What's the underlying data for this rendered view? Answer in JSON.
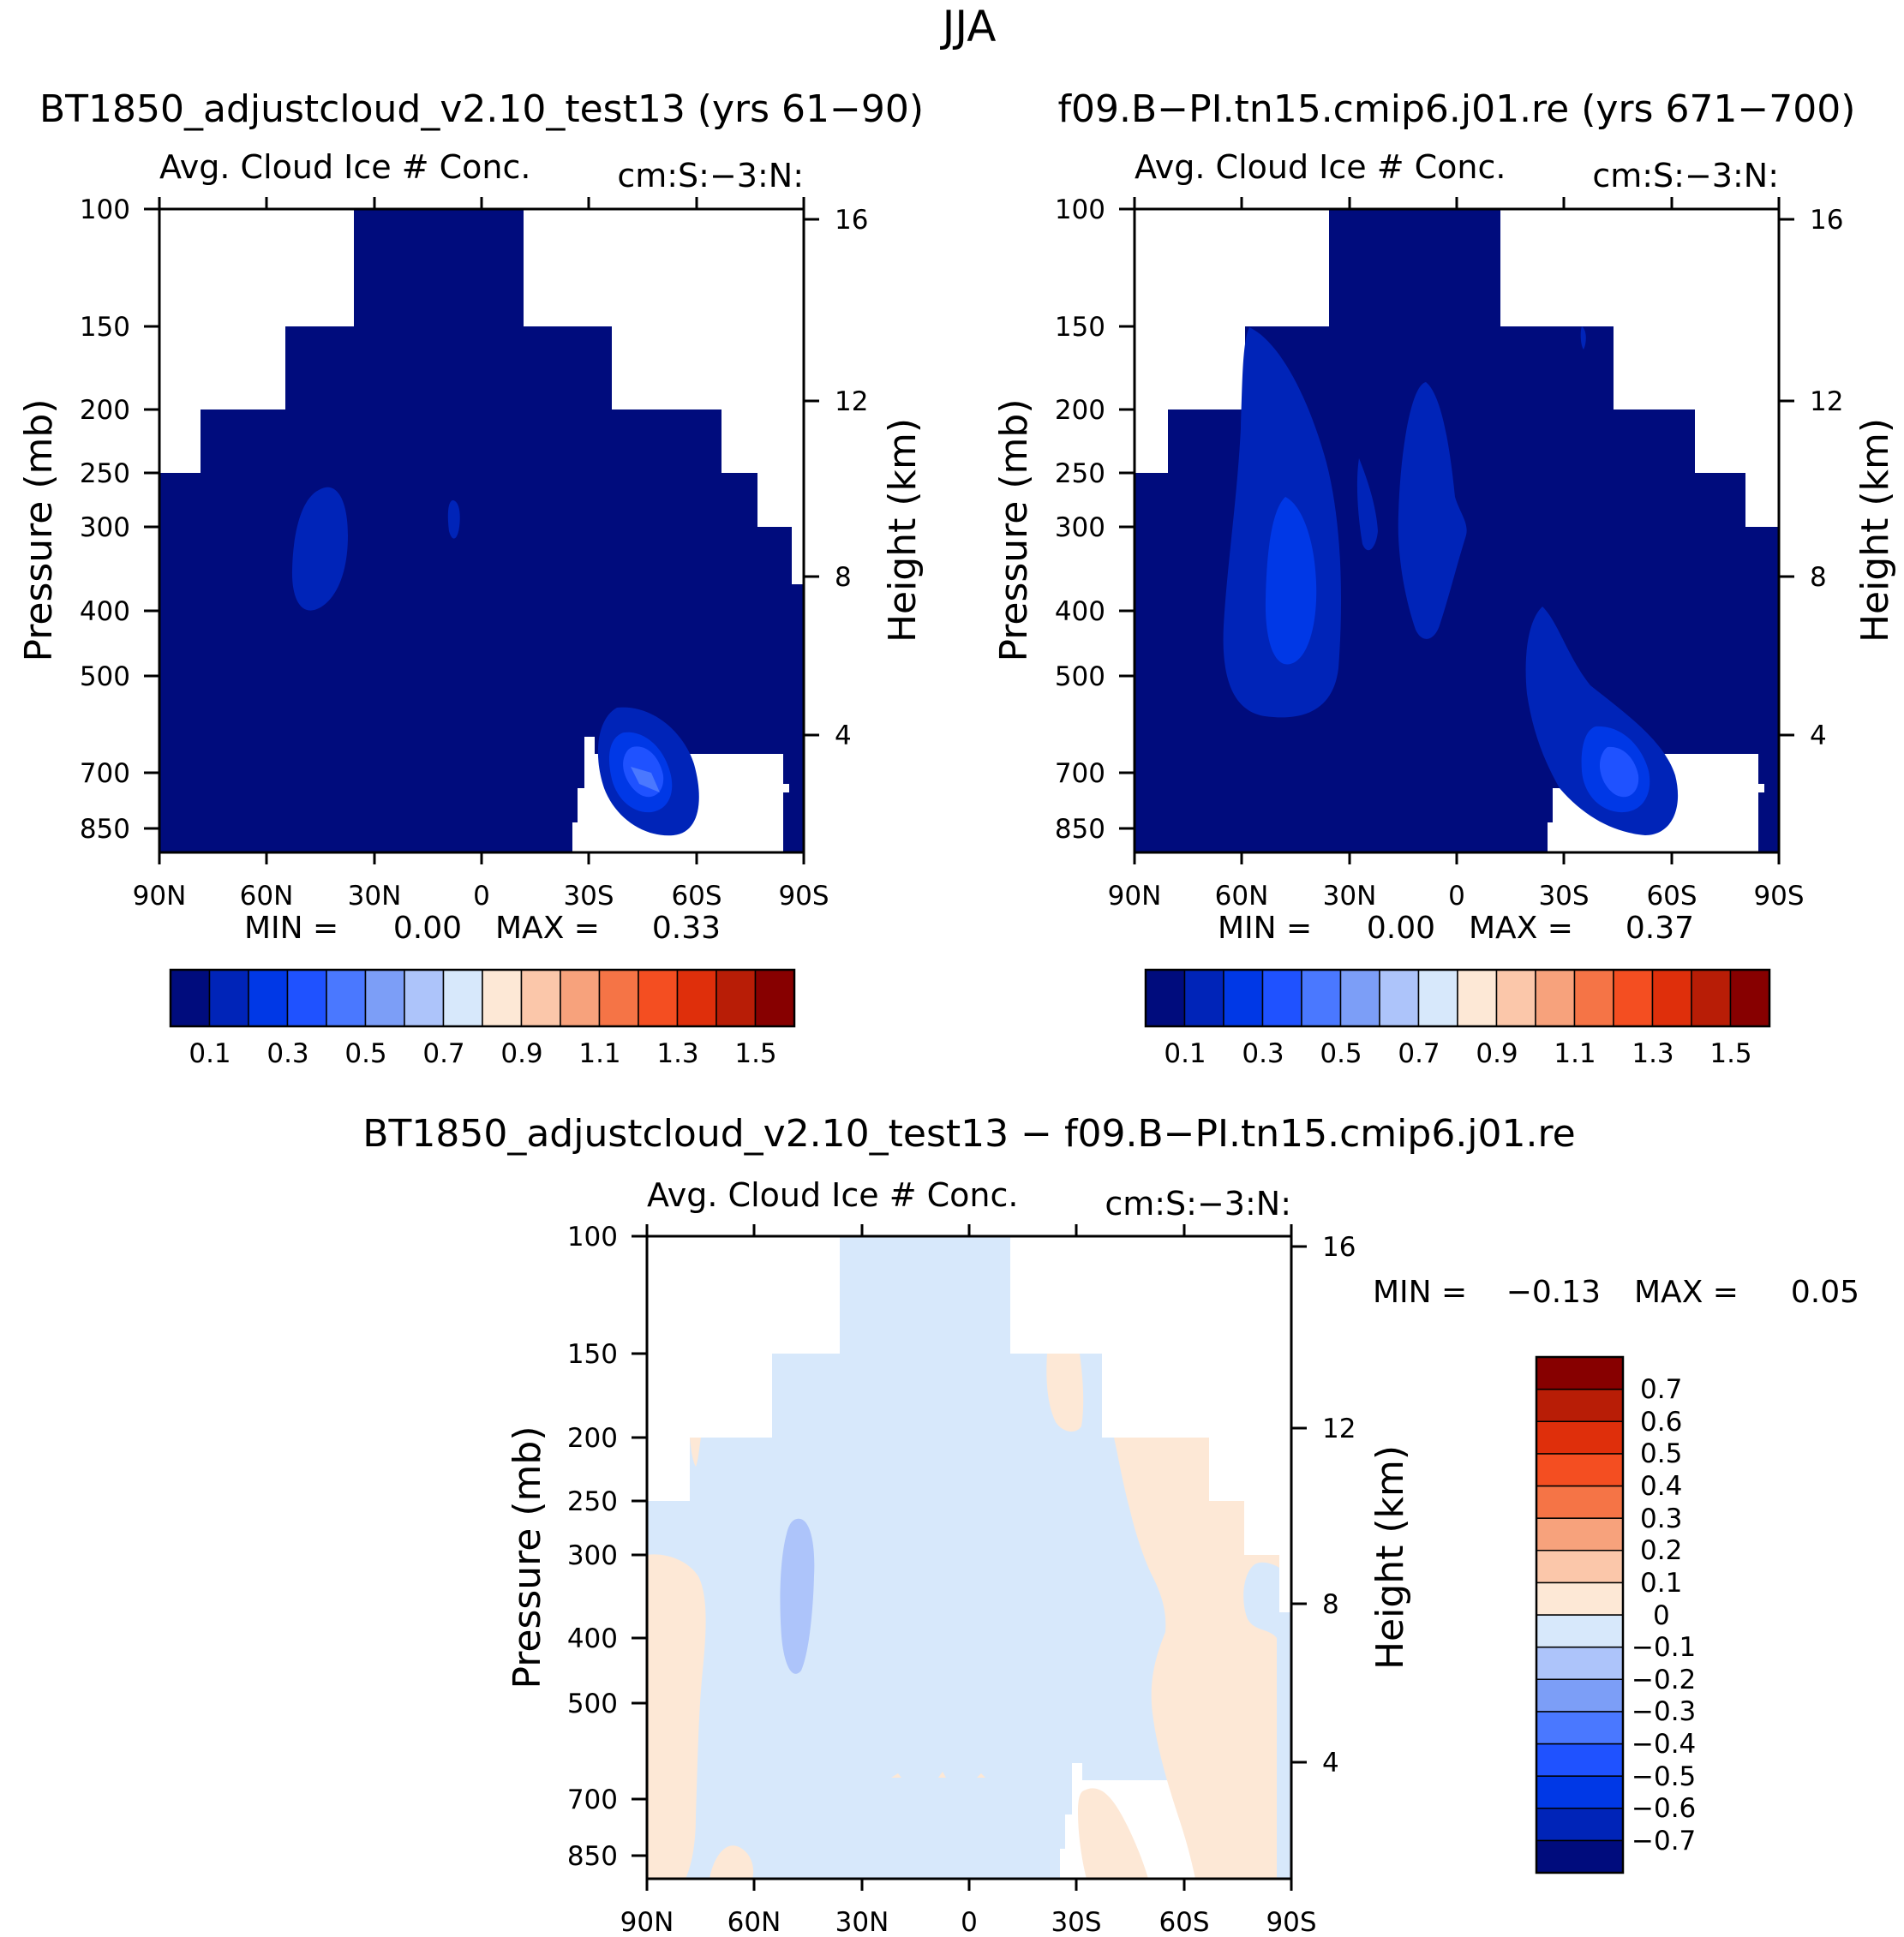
{
  "title": "JJA",
  "colors": {
    "seq": [
      "#000C7D",
      "#0024B8",
      "#0038E6",
      "#1F52FF",
      "#4A78FF",
      "#7C9EF7",
      "#ADC4FA",
      "#D7E8FB",
      "#FDE8D6",
      "#FBC7AA",
      "#F7A27C",
      "#F57446",
      "#F44E21",
      "#DF2F0B",
      "#B81D06",
      "#870000"
    ],
    "div": [
      "#000C7D",
      "#0024B8",
      "#0038E6",
      "#1F52FF",
      "#4A78FF",
      "#7C9EF7",
      "#ADC4FA",
      "#D7E8FB",
      "#FDE8D6",
      "#FBC7AA",
      "#F7A27C",
      "#F57446",
      "#F44E21",
      "#DF2F0B",
      "#B81D06",
      "#870000"
    ]
  },
  "chart_data": [
    {
      "type": "heatmap",
      "suptitle": "BT1850_adjustcloud_v2.10_test13 (yrs 61−90)",
      "title_left": "Avg. Cloud Ice # Conc.",
      "title_right": "cm:S:−3:N:",
      "xlabel": "",
      "ylabel": "Pressure (mb)",
      "ylabel_right": "Height (km)",
      "x_ticks": [
        "90N",
        "60N",
        "30N",
        "0",
        "30S",
        "60S",
        "90S"
      ],
      "y_ticks": [
        "100",
        "150",
        "200",
        "250",
        "300",
        "400",
        "500",
        "700",
        "850"
      ],
      "y_right_ticks": [
        "16",
        "12",
        "8",
        "4"
      ],
      "min_label": "MIN =",
      "min_value": "0.00",
      "max_label": "MAX =",
      "max_value": "0.33",
      "colorbar_labels": [
        "0.1",
        "0.3",
        "0.5",
        "0.7",
        "0.9",
        "1.1",
        "1.3",
        "1.5"
      ],
      "field_summary": "dominant 0-0.1 over the domain; local maxima near 45N 300-400mb and 45S 600-850mb"
    },
    {
      "type": "heatmap",
      "suptitle": "f09.B−PI.tn15.cmip6.j01.re (yrs 671−700)",
      "title_left": "Avg. Cloud Ice # Conc.",
      "title_right": "cm:S:−3:N:",
      "xlabel": "",
      "ylabel": "Pressure (mb)",
      "ylabel_right": "Height (km)",
      "x_ticks": [
        "90N",
        "60N",
        "30N",
        "0",
        "30S",
        "60S",
        "90S"
      ],
      "y_ticks": [
        "100",
        "150",
        "200",
        "250",
        "300",
        "400",
        "500",
        "700",
        "850"
      ],
      "y_right_ticks": [
        "16",
        "12",
        "8",
        "4"
      ],
      "min_label": "MIN =",
      "min_value": "0.00",
      "max_label": "MAX =",
      "max_value": "0.37",
      "colorbar_labels": [
        "0.1",
        "0.3",
        "0.5",
        "0.7",
        "0.9",
        "1.1",
        "1.3",
        "1.5"
      ],
      "field_summary": "dominant 0-0.1; larger 0.1-0.3 areas near 45N 200-600mb, 10N 200-400mb, and 40S 400-850mb"
    },
    {
      "type": "heatmap",
      "suptitle": "BT1850_adjustcloud_v2.10_test13 − f09.B−PI.tn15.cmip6.j01.re",
      "title_left": "Avg. Cloud Ice # Conc.",
      "title_right": "cm:S:−3:N:",
      "xlabel": "",
      "ylabel": "Pressure (mb)",
      "ylabel_right": "Height (km)",
      "x_ticks": [
        "90N",
        "60N",
        "30N",
        "0",
        "30S",
        "60S",
        "90S"
      ],
      "y_ticks": [
        "100",
        "150",
        "200",
        "250",
        "300",
        "400",
        "500",
        "700",
        "850"
      ],
      "y_right_ticks": [
        "16",
        "12",
        "8",
        "4"
      ],
      "min_label": "MIN =",
      "min_value": "−0.13",
      "max_label": "MAX =",
      "max_value": "0.05",
      "colorbar_labels": [
        "0.7",
        "0.6",
        "0.5",
        "0.4",
        "0.3",
        "0.2",
        "0.1",
        "0",
        "−0.1",
        "−0.2",
        "−0.3",
        "−0.4",
        "−0.5",
        "−0.6",
        "−0.7"
      ],
      "field_summary": "mostly −0.1-0 with 0-0.1 regions at high latitudes; −0.2 patch near 45N 300-450mb"
    }
  ]
}
